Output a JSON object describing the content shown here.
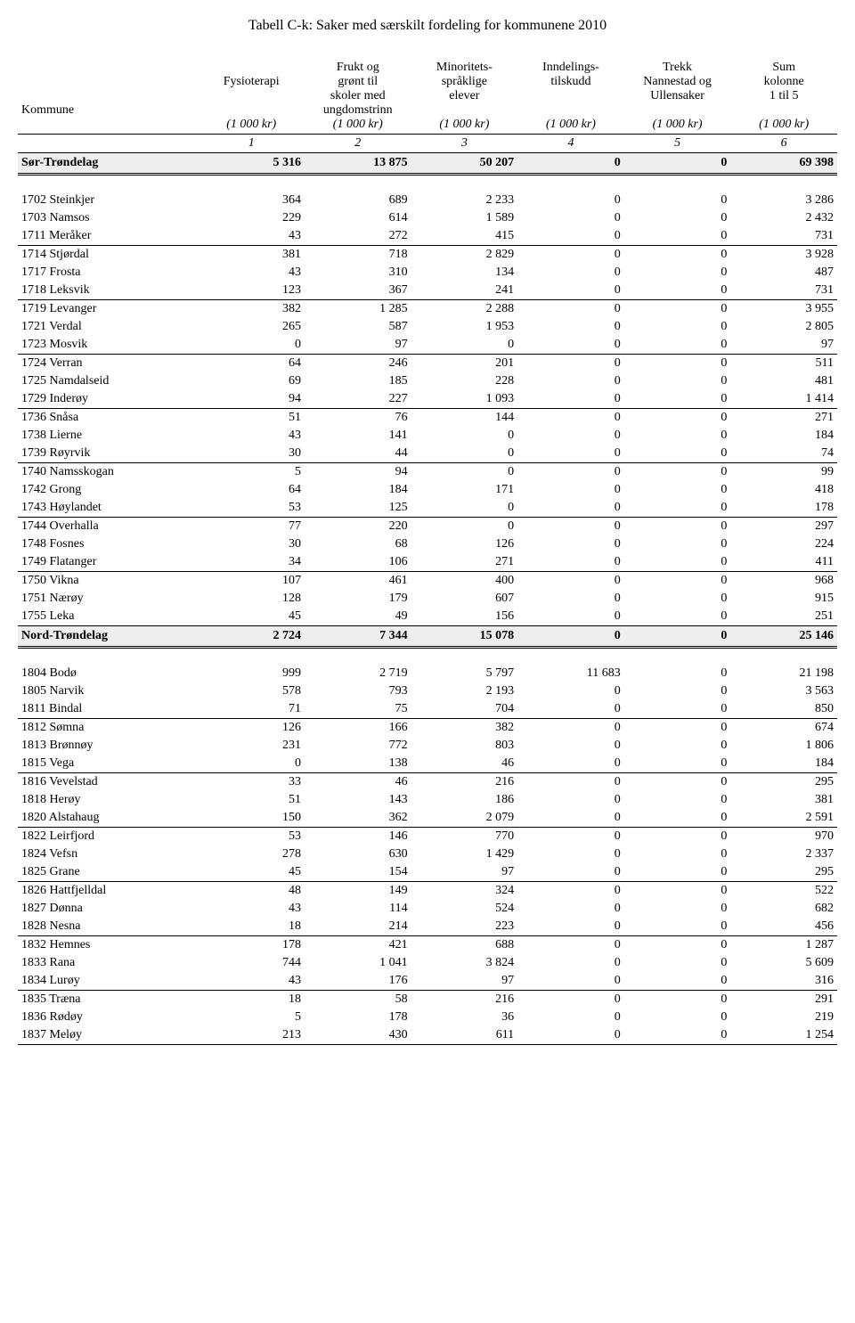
{
  "title": "Tabell C-k: Saker med særskilt fordeling for kommunene 2010",
  "header": {
    "row_label": "Kommune",
    "columns": [
      {
        "line1": "",
        "line2": "Fysioterapi",
        "line3": ""
      },
      {
        "line1": "Frukt og",
        "line2": "grønt til",
        "line3": "skoler med",
        "line4": "ungdomstrinn"
      },
      {
        "line1": "Minoritets-",
        "line2": "språklige",
        "line3": "elever"
      },
      {
        "line1": "Inndelings-",
        "line2": "tilskudd",
        "line3": ""
      },
      {
        "line1": "Trekk",
        "line2": "Nannestad og",
        "line3": "Ullensaker"
      },
      {
        "line1": "Sum",
        "line2": "kolonne",
        "line3": "1 til 5"
      }
    ],
    "unit": "(1 000 kr)",
    "colnums": [
      "1",
      "2",
      "3",
      "4",
      "5",
      "6"
    ]
  },
  "sections": [
    {
      "region": {
        "name": "Sør-Trøndelag",
        "values": [
          "5 316",
          "13 875",
          "50 207",
          "0",
          "0",
          "69 398"
        ]
      },
      "groups": [
        [
          {
            "name": "1702 Steinkjer",
            "values": [
              "364",
              "689",
              "2 233",
              "0",
              "0",
              "3 286"
            ]
          },
          {
            "name": "1703 Namsos",
            "values": [
              "229",
              "614",
              "1 589",
              "0",
              "0",
              "2 432"
            ]
          },
          {
            "name": "1711 Meråker",
            "values": [
              "43",
              "272",
              "415",
              "0",
              "0",
              "731"
            ]
          }
        ],
        [
          {
            "name": "1714 Stjørdal",
            "values": [
              "381",
              "718",
              "2 829",
              "0",
              "0",
              "3 928"
            ]
          },
          {
            "name": "1717 Frosta",
            "values": [
              "43",
              "310",
              "134",
              "0",
              "0",
              "487"
            ]
          },
          {
            "name": "1718 Leksvik",
            "values": [
              "123",
              "367",
              "241",
              "0",
              "0",
              "731"
            ]
          }
        ],
        [
          {
            "name": "1719 Levanger",
            "values": [
              "382",
              "1 285",
              "2 288",
              "0",
              "0",
              "3 955"
            ]
          },
          {
            "name": "1721 Verdal",
            "values": [
              "265",
              "587",
              "1 953",
              "0",
              "0",
              "2 805"
            ]
          },
          {
            "name": "1723 Mosvik",
            "values": [
              "0",
              "97",
              "0",
              "0",
              "0",
              "97"
            ]
          }
        ],
        [
          {
            "name": "1724 Verran",
            "values": [
              "64",
              "246",
              "201",
              "0",
              "0",
              "511"
            ]
          },
          {
            "name": "1725 Namdalseid",
            "values": [
              "69",
              "185",
              "228",
              "0",
              "0",
              "481"
            ]
          },
          {
            "name": "1729 Inderøy",
            "values": [
              "94",
              "227",
              "1 093",
              "0",
              "0",
              "1 414"
            ]
          }
        ],
        [
          {
            "name": "1736 Snåsa",
            "values": [
              "51",
              "76",
              "144",
              "0",
              "0",
              "271"
            ]
          },
          {
            "name": "1738 Lierne",
            "values": [
              "43",
              "141",
              "0",
              "0",
              "0",
              "184"
            ]
          },
          {
            "name": "1739 Røyrvik",
            "values": [
              "30",
              "44",
              "0",
              "0",
              "0",
              "74"
            ]
          }
        ],
        [
          {
            "name": "1740 Namsskogan",
            "values": [
              "5",
              "94",
              "0",
              "0",
              "0",
              "99"
            ]
          },
          {
            "name": "1742 Grong",
            "values": [
              "64",
              "184",
              "171",
              "0",
              "0",
              "418"
            ]
          },
          {
            "name": "1743 Høylandet",
            "values": [
              "53",
              "125",
              "0",
              "0",
              "0",
              "178"
            ]
          }
        ],
        [
          {
            "name": "1744 Overhalla",
            "values": [
              "77",
              "220",
              "0",
              "0",
              "0",
              "297"
            ]
          },
          {
            "name": "1748 Fosnes",
            "values": [
              "30",
              "68",
              "126",
              "0",
              "0",
              "224"
            ]
          },
          {
            "name": "1749 Flatanger",
            "values": [
              "34",
              "106",
              "271",
              "0",
              "0",
              "411"
            ]
          }
        ],
        [
          {
            "name": "1750 Vikna",
            "values": [
              "107",
              "461",
              "400",
              "0",
              "0",
              "968"
            ]
          },
          {
            "name": "1751 Nærøy",
            "values": [
              "128",
              "179",
              "607",
              "0",
              "0",
              "915"
            ]
          },
          {
            "name": "1755 Leka",
            "values": [
              "45",
              "49",
              "156",
              "0",
              "0",
              "251"
            ]
          }
        ]
      ],
      "subtotal": {
        "name": "Nord-Trøndelag",
        "values": [
          "2 724",
          "7 344",
          "15 078",
          "0",
          "0",
          "25 146"
        ]
      }
    },
    {
      "groups": [
        [
          {
            "name": "1804 Bodø",
            "values": [
              "999",
              "2 719",
              "5 797",
              "11 683",
              "0",
              "21 198"
            ]
          },
          {
            "name": "1805 Narvik",
            "values": [
              "578",
              "793",
              "2 193",
              "0",
              "0",
              "3 563"
            ]
          },
          {
            "name": "1811 Bindal",
            "values": [
              "71",
              "75",
              "704",
              "0",
              "0",
              "850"
            ]
          }
        ],
        [
          {
            "name": "1812 Sømna",
            "values": [
              "126",
              "166",
              "382",
              "0",
              "0",
              "674"
            ]
          },
          {
            "name": "1813 Brønnøy",
            "values": [
              "231",
              "772",
              "803",
              "0",
              "0",
              "1 806"
            ]
          },
          {
            "name": "1815 Vega",
            "values": [
              "0",
              "138",
              "46",
              "0",
              "0",
              "184"
            ]
          }
        ],
        [
          {
            "name": "1816 Vevelstad",
            "values": [
              "33",
              "46",
              "216",
              "0",
              "0",
              "295"
            ]
          },
          {
            "name": "1818 Herøy",
            "values": [
              "51",
              "143",
              "186",
              "0",
              "0",
              "381"
            ]
          },
          {
            "name": "1820 Alstahaug",
            "values": [
              "150",
              "362",
              "2 079",
              "0",
              "0",
              "2 591"
            ]
          }
        ],
        [
          {
            "name": "1822 Leirfjord",
            "values": [
              "53",
              "146",
              "770",
              "0",
              "0",
              "970"
            ]
          },
          {
            "name": "1824 Vefsn",
            "values": [
              "278",
              "630",
              "1 429",
              "0",
              "0",
              "2 337"
            ]
          },
          {
            "name": "1825 Grane",
            "values": [
              "45",
              "154",
              "97",
              "0",
              "0",
              "295"
            ]
          }
        ],
        [
          {
            "name": "1826 Hattfjelldal",
            "values": [
              "48",
              "149",
              "324",
              "0",
              "0",
              "522"
            ]
          },
          {
            "name": "1827 Dønna",
            "values": [
              "43",
              "114",
              "524",
              "0",
              "0",
              "682"
            ]
          },
          {
            "name": "1828 Nesna",
            "values": [
              "18",
              "214",
              "223",
              "0",
              "0",
              "456"
            ]
          }
        ],
        [
          {
            "name": "1832 Hemnes",
            "values": [
              "178",
              "421",
              "688",
              "0",
              "0",
              "1 287"
            ]
          },
          {
            "name": "1833 Rana",
            "values": [
              "744",
              "1 041",
              "3 824",
              "0",
              "0",
              "5 609"
            ]
          },
          {
            "name": "1834 Lurøy",
            "values": [
              "43",
              "176",
              "97",
              "0",
              "0",
              "316"
            ]
          }
        ],
        [
          {
            "name": "1835 Træna",
            "values": [
              "18",
              "58",
              "216",
              "0",
              "0",
              "291"
            ]
          },
          {
            "name": "1836 Rødøy",
            "values": [
              "5",
              "178",
              "36",
              "0",
              "0",
              "219"
            ]
          },
          {
            "name": "1837 Meløy",
            "values": [
              "213",
              "430",
              "611",
              "0",
              "0",
              "1 254"
            ]
          }
        ]
      ]
    }
  ]
}
